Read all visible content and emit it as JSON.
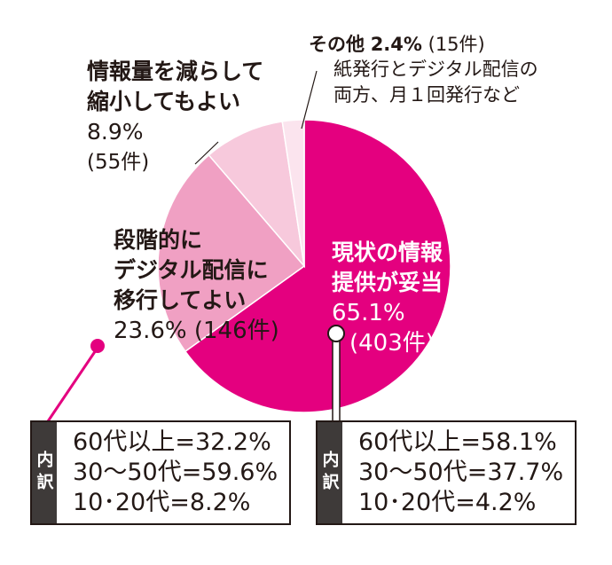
{
  "chart_data": {
    "type": "pie",
    "slices": [
      {
        "label": "現状の情報提供が妥当",
        "percent": 65.1,
        "count": "(403件)",
        "color": "#e4007f"
      },
      {
        "label": "段階的にデジタル配信に移行してよい",
        "percent": 23.6,
        "count": "(146件)",
        "color": "#f0a0c3"
      },
      {
        "label": "情報量を減らして縮小してもよい",
        "percent": 8.9,
        "count": "(55件)",
        "color": "#f7c9dc"
      },
      {
        "label": "その他",
        "percent": 2.4,
        "count": "(15件)",
        "color": "#fbe4ee"
      }
    ]
  },
  "labels": {
    "main": {
      "line1": "現状の情報",
      "line2": "提供が妥当",
      "pct": "65.1%",
      "count": "(403件)"
    },
    "gradual": {
      "line1": "段階的に",
      "line2": "デジタル配信に",
      "line3": "移行してよい",
      "pct": "23.6%",
      "count": "(146件)"
    },
    "reduce": {
      "line1": "情報量を減らして",
      "line2": "縮小してもよい",
      "pct": "8.9%",
      "count": "(55件)"
    },
    "other": {
      "name": "その他",
      "pct": "2.4%",
      "count": "(15件)",
      "note1": "紙発行とデジタル配信の",
      "note2": "両方、月１回発行など"
    }
  },
  "breakdown_left": {
    "tag": "内訳",
    "rows": [
      "60代以上=32.2%",
      "30～50代=59.6%",
      "10･20代=8.2%"
    ]
  },
  "breakdown_right": {
    "tag": "内訳",
    "rows": [
      "60代以上=58.1%",
      "30～50代=37.7%",
      "10･20代=4.2%"
    ]
  }
}
